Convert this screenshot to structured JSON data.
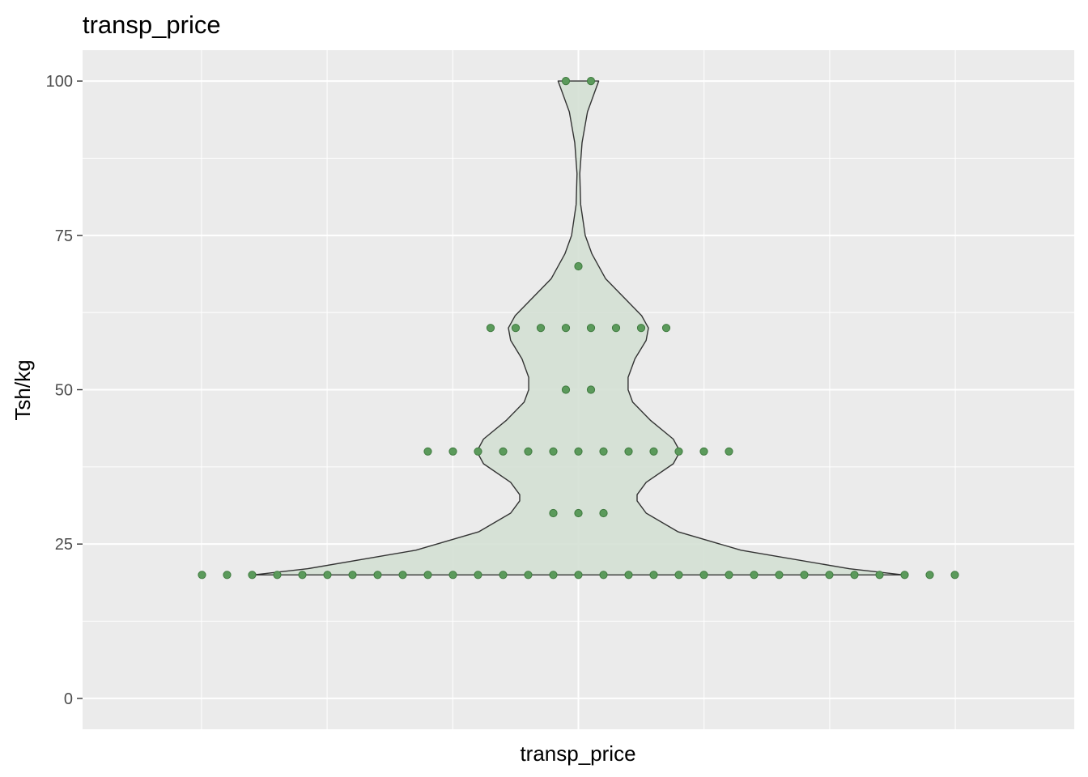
{
  "colors": {
    "panel_background": "#EBEBEB",
    "grid_line": "#FFFFFF",
    "violin_fill": "#D4E0D4",
    "violin_outline": "#333333",
    "point_fill": "#5B9A5B",
    "point_outline": "#3F7A3F",
    "tick_color": "#333333"
  },
  "chart_data": {
    "type": "violin",
    "title": "transp_price",
    "xlabel": "transp_price",
    "ylabel": "Tsh/kg",
    "categories": [
      "transp_price"
    ],
    "ylim": [
      -5,
      105
    ],
    "y_ticks": [
      0,
      25,
      50,
      75,
      100
    ],
    "y_tick_labels": [
      "0",
      "25",
      "50",
      "75",
      "100"
    ],
    "grid": true,
    "legend": "none",
    "violin_profile": [
      {
        "y": 20,
        "half_width": 0.72
      },
      {
        "y": 21,
        "half_width": 0.6
      },
      {
        "y": 24,
        "half_width": 0.36
      },
      {
        "y": 27,
        "half_width": 0.22
      },
      {
        "y": 30,
        "half_width": 0.15
      },
      {
        "y": 32,
        "half_width": 0.13
      },
      {
        "y": 33,
        "half_width": 0.13
      },
      {
        "y": 35,
        "half_width": 0.15
      },
      {
        "y": 38,
        "half_width": 0.21
      },
      {
        "y": 40,
        "half_width": 0.225
      },
      {
        "y": 42,
        "half_width": 0.21
      },
      {
        "y": 45,
        "half_width": 0.16
      },
      {
        "y": 48,
        "half_width": 0.12
      },
      {
        "y": 50,
        "half_width": 0.11
      },
      {
        "y": 52,
        "half_width": 0.11
      },
      {
        "y": 55,
        "half_width": 0.125
      },
      {
        "y": 58,
        "half_width": 0.15
      },
      {
        "y": 60,
        "half_width": 0.155
      },
      {
        "y": 62,
        "half_width": 0.14
      },
      {
        "y": 65,
        "half_width": 0.1
      },
      {
        "y": 68,
        "half_width": 0.06
      },
      {
        "y": 72,
        "half_width": 0.03
      },
      {
        "y": 75,
        "half_width": 0.015
      },
      {
        "y": 80,
        "half_width": 0.005
      },
      {
        "y": 85,
        "half_width": 0.003
      },
      {
        "y": 90,
        "half_width": 0.008
      },
      {
        "y": 95,
        "half_width": 0.02
      },
      {
        "y": 98,
        "half_width": 0.035
      },
      {
        "y": 100,
        "half_width": 0.045
      }
    ],
    "points": [
      {
        "y": 20,
        "count": 31
      },
      {
        "y": 30,
        "count": 3
      },
      {
        "y": 40,
        "count": 13
      },
      {
        "y": 50,
        "count": 2
      },
      {
        "y": 60,
        "count": 8
      },
      {
        "y": 70,
        "count": 1
      },
      {
        "y": 100,
        "count": 2
      }
    ]
  }
}
